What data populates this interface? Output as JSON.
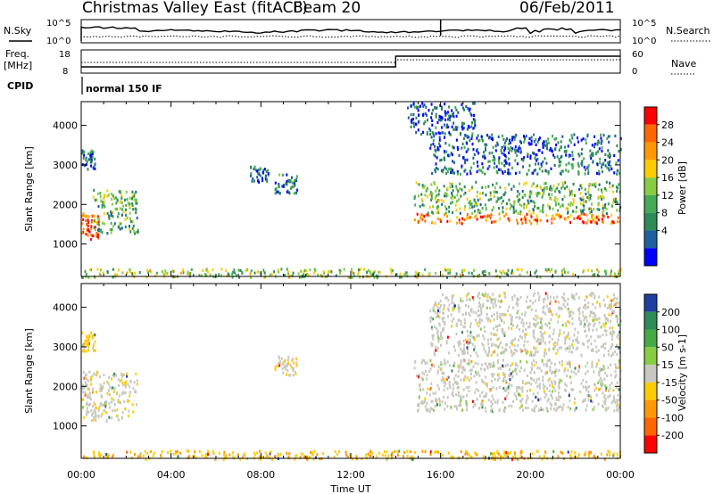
{
  "header": {
    "title": "Christmas Valley East (fitACF)",
    "beam": "Beam 20",
    "date": "06/Feb/2011"
  },
  "noise_panel": {
    "left_label": "N.Sky",
    "right_label": "N.Search",
    "left_ticks": [
      "10^5",
      "10^0"
    ],
    "right_ticks": [
      "10^5",
      "10^0"
    ]
  },
  "freq_panel": {
    "left_label_1": "Freq.",
    "left_label_2": "[MHz]",
    "right_label": "Nave",
    "left_ticks": [
      "18",
      "8"
    ],
    "right_ticks": [
      "60",
      "0"
    ]
  },
  "cpid": {
    "label": "CPID",
    "value": "normal 150 IF"
  },
  "xaxis": {
    "label": "Time UT",
    "ticks": [
      "00:00",
      "04:00",
      "08:00",
      "12:00",
      "16:00",
      "20:00",
      "00:00"
    ]
  },
  "power_colorbar": {
    "label": "Power [dB]",
    "ticks": [
      "28",
      "24",
      "20",
      "16",
      "12",
      "8",
      "4"
    ],
    "colors": [
      "#ff0000",
      "#ff6600",
      "#ff9900",
      "#ffcc00",
      "#88cc44",
      "#44aa55",
      "#2e8b57",
      "#1f5fa0",
      "#0000ff"
    ]
  },
  "velocity_colorbar": {
    "label": "Velocity [m s-1]",
    "ticks": [
      "200",
      "100",
      "50",
      "15",
      "-15",
      "-50",
      "-100",
      "-200"
    ],
    "colors": [
      "#1f3fa0",
      "#2e8b57",
      "#44aa44",
      "#88cc44",
      "#c8c8c0",
      "#ffcc00",
      "#ff9900",
      "#ff6600",
      "#ff0000"
    ]
  },
  "chart_data": [
    {
      "type": "heatmap",
      "title": "Power",
      "xlabel": "Time UT",
      "ylabel": "Slant Range [km]",
      "xlim": [
        0,
        24
      ],
      "ylim": [
        180,
        4600
      ],
      "yticks": [
        1000,
        2000,
        3000,
        4000
      ],
      "colorbar": {
        "label": "Power [dB]",
        "range": [
          0,
          30
        ]
      },
      "regions": [
        {
          "t": [
            0.0,
            0.8
          ],
          "r": [
            1150,
            1800
          ],
          "db": 26
        },
        {
          "t": [
            0.5,
            2.5
          ],
          "r": [
            1300,
            2400
          ],
          "db": 12
        },
        {
          "t": [
            0.0,
            0.6
          ],
          "r": [
            2900,
            3400
          ],
          "db": 6
        },
        {
          "t": [
            7.5,
            8.3
          ],
          "r": [
            2600,
            3000
          ],
          "db": 6
        },
        {
          "t": [
            8.6,
            9.6
          ],
          "r": [
            2300,
            2800
          ],
          "db": 8
        },
        {
          "t": [
            14.8,
            24.0
          ],
          "r": [
            1550,
            1800
          ],
          "db": 24
        },
        {
          "t": [
            14.8,
            24.0
          ],
          "r": [
            1800,
            2600
          ],
          "db": 12
        },
        {
          "t": [
            15.5,
            24.0
          ],
          "r": [
            2800,
            3800
          ],
          "db": 6
        },
        {
          "t": [
            14.5,
            17.5
          ],
          "r": [
            3800,
            4600
          ],
          "db": 4
        },
        {
          "t": [
            0.0,
            24.0
          ],
          "r": [
            180,
            400
          ],
          "db": 14
        }
      ]
    },
    {
      "type": "heatmap",
      "title": "Velocity",
      "xlabel": "Time UT",
      "ylabel": "Slant Range [km]",
      "xlim": [
        0,
        24
      ],
      "ylim": [
        180,
        4600
      ],
      "yticks": [
        1000,
        2000,
        3000,
        4000
      ],
      "colorbar": {
        "label": "Velocity [m s-1]",
        "range": [
          -200,
          200
        ]
      },
      "regions": [
        {
          "t": [
            0.0,
            2.5
          ],
          "r": [
            1150,
            2400
          ],
          "v": -10
        },
        {
          "t": [
            0.0,
            0.6
          ],
          "r": [
            2900,
            3400
          ],
          "v": -40
        },
        {
          "t": [
            8.6,
            9.6
          ],
          "r": [
            2300,
            2800
          ],
          "v": -10
        },
        {
          "t": [
            14.8,
            24.0
          ],
          "r": [
            1400,
            2700
          ],
          "v": 0
        },
        {
          "t": [
            15.5,
            24.0
          ],
          "r": [
            2800,
            4400
          ],
          "v": 0
        },
        {
          "t": [
            0.0,
            24.0
          ],
          "r": [
            180,
            400
          ],
          "v": -60
        }
      ]
    }
  ]
}
